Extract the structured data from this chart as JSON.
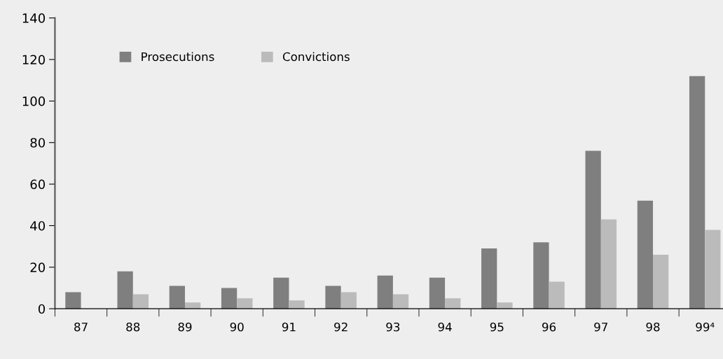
{
  "chart_data": {
    "type": "bar",
    "categories": [
      "87",
      "88",
      "89",
      "90",
      "91",
      "92",
      "93",
      "94",
      "95",
      "96",
      "97",
      "98",
      "99⁴"
    ],
    "series": [
      {
        "name": "Prosecutions",
        "color": "#7f7f7f",
        "values": [
          8,
          18,
          11,
          10,
          15,
          11,
          16,
          15,
          29,
          32,
          76,
          52,
          112
        ]
      },
      {
        "name": "Convictions",
        "color": "#bbbbbb",
        "values": [
          0,
          7,
          3,
          5,
          4,
          8,
          7,
          5,
          3,
          13,
          43,
          26,
          38
        ]
      }
    ],
    "ylim": [
      0,
      140
    ],
    "yticks": [
      0,
      20,
      40,
      60,
      80,
      100,
      120,
      140
    ],
    "grid": false,
    "legend": "top left"
  }
}
